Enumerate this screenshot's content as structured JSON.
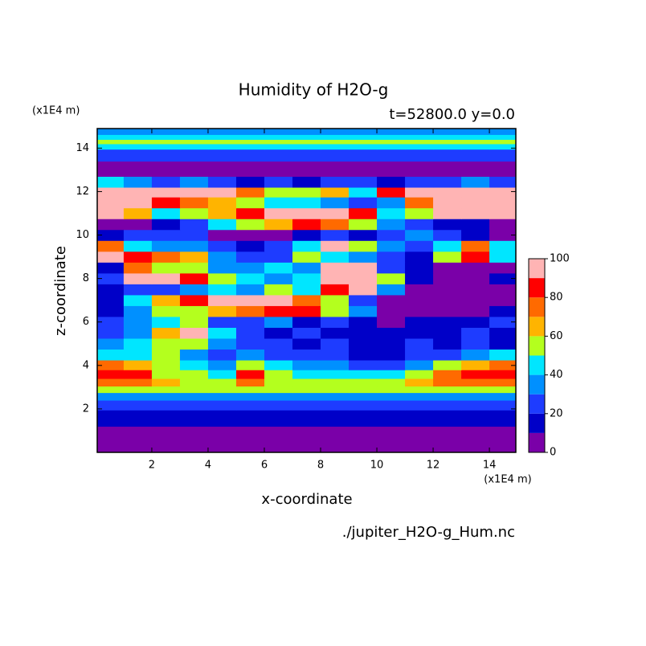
{
  "chart_data": {
    "type": "contour",
    "title": "Humidity of H2O-g",
    "subtitle": "t=52800.0 y=0.0",
    "x_label": "x-coordinate",
    "y_label": "z-coordinate",
    "x_unit": "(x1E4 m)",
    "y_unit": "(x1E4 m)",
    "footer": "./jupiter_H2O-g_Hum.nc",
    "xlim": [
      0.06,
      14.94
    ],
    "ylim": [
      0,
      14.9
    ],
    "xticks": [
      2,
      4,
      6,
      8,
      10,
      12,
      14
    ],
    "yticks": [
      2,
      4,
      6,
      8,
      10,
      12,
      14
    ],
    "levels": [
      0,
      10,
      20,
      30,
      40,
      50,
      60,
      70,
      80,
      90,
      100
    ],
    "colors": [
      "#7a00a8",
      "#0000c8",
      "#1e3cff",
      "#0090ff",
      "#00e6ff",
      "#b4ff1e",
      "#ffb400",
      "#ff6a00",
      "#ff0000",
      "#ffb4b4"
    ],
    "colorbar_ticks": [
      0,
      20,
      40,
      60,
      80,
      100
    ],
    "x": [
      0.5,
      1.5,
      2.5,
      3.5,
      4.5,
      5.5,
      6.5,
      7.5,
      8.5,
      9.5,
      10.5,
      11.5,
      12.5,
      13.5,
      14.5
    ],
    "z": [
      0.7,
      1.7,
      2.2,
      2.6,
      2.9,
      3.2,
      3.6,
      4.0,
      4.5,
      5.0,
      5.5,
      6.0,
      6.5,
      7.0,
      7.5,
      8.0,
      8.5,
      9.0,
      9.5,
      10.0,
      10.5,
      11.0,
      11.5,
      12.0,
      12.4,
      13.0,
      13.8,
      14.1,
      14.3,
      14.5,
      14.75
    ],
    "values": [
      [
        5,
        5,
        5,
        5,
        5,
        5,
        5,
        5,
        5,
        5,
        5,
        5,
        5,
        5,
        5
      ],
      [
        15,
        15,
        15,
        15,
        15,
        15,
        15,
        15,
        15,
        15,
        15,
        15,
        15,
        15,
        15
      ],
      [
        25,
        25,
        25,
        25,
        25,
        25,
        25,
        25,
        25,
        25,
        25,
        25,
        25,
        25,
        25
      ],
      [
        35,
        35,
        35,
        35,
        35,
        35,
        35,
        35,
        35,
        35,
        35,
        35,
        35,
        35,
        35
      ],
      [
        55,
        55,
        55,
        55,
        55,
        55,
        55,
        55,
        55,
        55,
        55,
        55,
        55,
        55,
        55
      ],
      [
        75,
        75,
        65,
        55,
        55,
        75,
        55,
        55,
        55,
        55,
        55,
        65,
        75,
        75,
        75
      ],
      [
        85,
        85,
        55,
        55,
        45,
        85,
        55,
        45,
        45,
        45,
        45,
        55,
        75,
        85,
        85
      ],
      [
        75,
        65,
        55,
        45,
        35,
        55,
        45,
        35,
        35,
        25,
        25,
        35,
        55,
        65,
        75
      ],
      [
        45,
        45,
        55,
        35,
        25,
        35,
        25,
        25,
        25,
        15,
        15,
        25,
        25,
        35,
        45
      ],
      [
        35,
        45,
        55,
        55,
        35,
        25,
        25,
        15,
        25,
        15,
        15,
        25,
        15,
        25,
        15
      ],
      [
        25,
        35,
        65,
        95,
        45,
        25,
        15,
        25,
        15,
        15,
        15,
        15,
        15,
        25,
        15
      ],
      [
        25,
        35,
        45,
        55,
        25,
        25,
        35,
        15,
        25,
        15,
        5,
        15,
        15,
        15,
        25
      ],
      [
        15,
        35,
        55,
        55,
        65,
        75,
        85,
        85,
        55,
        35,
        5,
        5,
        5,
        5,
        15
      ],
      [
        15,
        45,
        65,
        85,
        95,
        95,
        95,
        75,
        55,
        25,
        5,
        5,
        5,
        5,
        5
      ],
      [
        15,
        25,
        25,
        35,
        45,
        35,
        55,
        45,
        85,
        95,
        35,
        5,
        5,
        5,
        5
      ],
      [
        25,
        95,
        95,
        85,
        55,
        45,
        35,
        45,
        95,
        95,
        55,
        15,
        5,
        5,
        15
      ],
      [
        15,
        75,
        55,
        55,
        35,
        35,
        45,
        35,
        95,
        95,
        25,
        15,
        5,
        5,
        5
      ],
      [
        95,
        85,
        75,
        65,
        35,
        25,
        25,
        55,
        45,
        35,
        25,
        15,
        55,
        85,
        45
      ],
      [
        75,
        45,
        35,
        35,
        25,
        15,
        25,
        45,
        95,
        55,
        35,
        25,
        45,
        75,
        45
      ],
      [
        15,
        25,
        25,
        25,
        5,
        5,
        5,
        15,
        25,
        15,
        25,
        35,
        25,
        15,
        5
      ],
      [
        5,
        5,
        15,
        25,
        45,
        55,
        65,
        85,
        75,
        55,
        35,
        25,
        15,
        15,
        5
      ],
      [
        95,
        65,
        45,
        55,
        65,
        85,
        95,
        95,
        95,
        85,
        45,
        55,
        95,
        95,
        95
      ],
      [
        95,
        95,
        85,
        75,
        65,
        55,
        45,
        45,
        35,
        25,
        35,
        75,
        95,
        95,
        95
      ],
      [
        95,
        95,
        95,
        95,
        95,
        75,
        55,
        55,
        65,
        45,
        85,
        95,
        95,
        95,
        95
      ],
      [
        45,
        35,
        25,
        35,
        25,
        15,
        25,
        15,
        25,
        25,
        15,
        25,
        25,
        35,
        25
      ],
      [
        5,
        5,
        5,
        5,
        5,
        5,
        5,
        5,
        5,
        5,
        5,
        5,
        5,
        5,
        5
      ],
      [
        25,
        25,
        25,
        25,
        25,
        25,
        25,
        25,
        25,
        25,
        25,
        25,
        25,
        25,
        25
      ],
      [
        45,
        45,
        45,
        45,
        45,
        45,
        45,
        45,
        45,
        45,
        45,
        45,
        45,
        45,
        45
      ],
      [
        55,
        55,
        55,
        55,
        55,
        55,
        55,
        55,
        55,
        55,
        55,
        55,
        55,
        55,
        55
      ],
      [
        45,
        45,
        45,
        45,
        45,
        45,
        45,
        45,
        45,
        45,
        45,
        45,
        45,
        45,
        45
      ],
      [
        35,
        35,
        35,
        35,
        35,
        35,
        35,
        35,
        35,
        35,
        35,
        35,
        35,
        35,
        35
      ]
    ]
  }
}
